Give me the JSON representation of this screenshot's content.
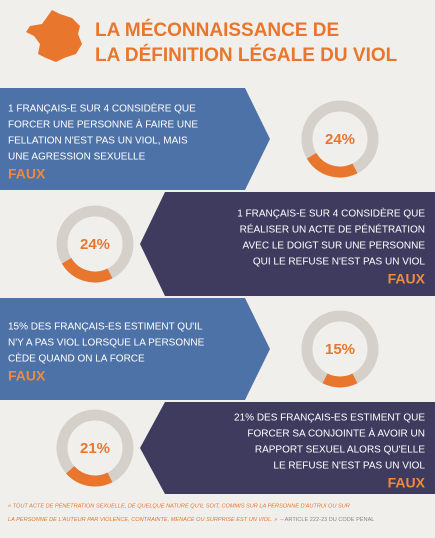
{
  "header": {
    "title": [
      "LA MÉCONNAISSANCE DE",
      "LA DÉFINITION LÉGALE DU VIOL"
    ]
  },
  "items": [
    {
      "text": [
        "1 FRANÇAIS-E SUR 4 CONSIDÈRE QUE",
        "FORCER UNE PERSONNE À FAIRE UNE",
        "FELLATION N'EST PAS UN VIOL, MAIS",
        "UNE AGRESSION SEXUELLE"
      ],
      "verdict": "FAUX",
      "value": 24,
      "value_label": "24%"
    },
    {
      "text": [
        "1 FRANÇAIS-E SUR 4 CONSIDÈRE QUE",
        "RÉALISER UN ACTE DE PÉNÉTRATION",
        "AVEC LE DOIGT SUR UNE PERSONNE",
        "QUI LE REFUSE N'EST PAS UN VIOL"
      ],
      "verdict": "FAUX",
      "value": 24,
      "value_label": "24%"
    },
    {
      "text": [
        "15% DES FRANÇAIS-ES ESTIMENT QU'IL",
        "N'Y A PAS VIOL LORSQUE LA PERSONNE",
        "CÈDE QUAND ON LA FORCE"
      ],
      "verdict": "FAUX",
      "value": 15,
      "value_label": "15%"
    },
    {
      "text": [
        "21% DES FRANÇAIS-ES ESTIMENT QUE",
        "FORCER SA CONJOINTE À AVOIR UN",
        "RAPPORT SEXUEL ALORS QU'ELLE",
        "LE REFUSE N'EST PAS UN VIOL"
      ],
      "verdict": "FAUX",
      "value": 21,
      "value_label": "21%"
    }
  ],
  "footer": {
    "quote": [
      "« TOUT ACTE DE PÉNÉTRATION SEXUELLE, DE QUELQUE NATURE QU'IL SOIT, COMMIS SUR LA PERSONNE D'AUTRUI OU SUR",
      "LA PERSONNE DE L'AUTEUR PAR VIOLENCE, CONTRAINTE, MENACE OU SURPRISE EST UN VIOL. »"
    ],
    "source": "– ARTICLE 222-23 DU CODE PÉNAL"
  }
}
